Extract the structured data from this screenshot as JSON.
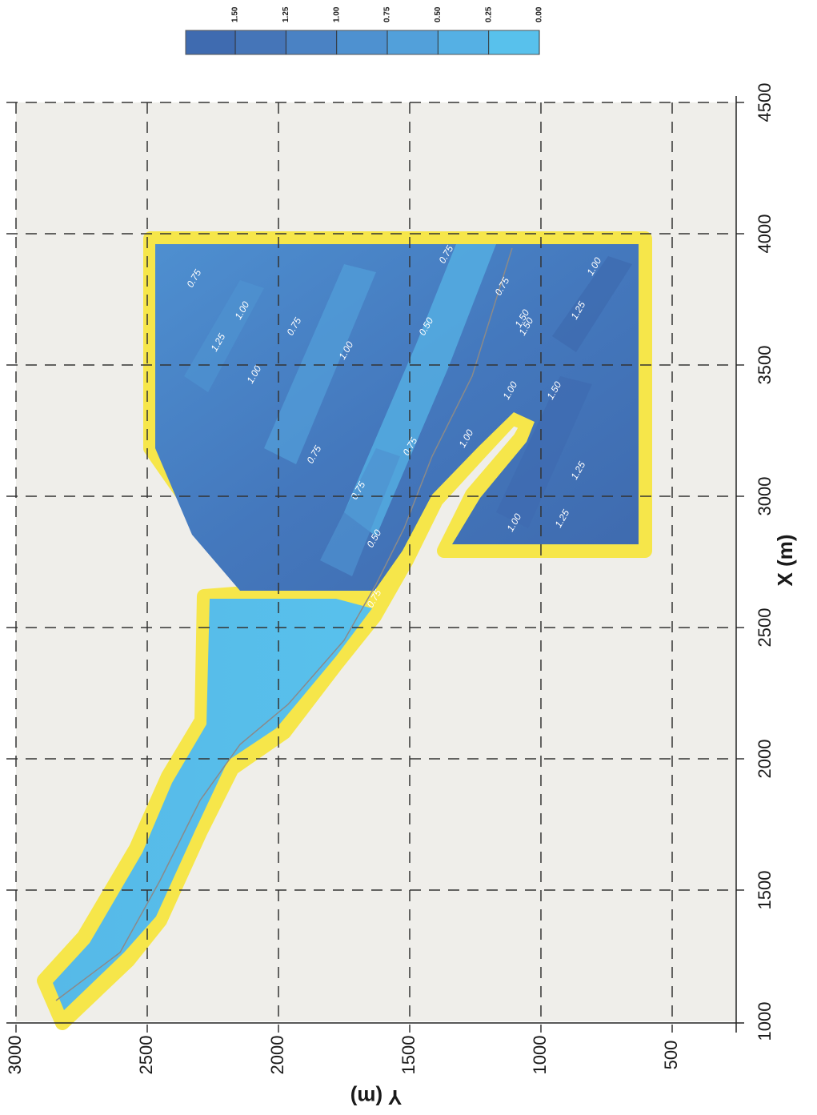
{
  "chart_data": {
    "type": "heatmap",
    "x_axis": {
      "label": "X (m)",
      "ticks": [
        "1000",
        "1500",
        "2000",
        "2500",
        "3000",
        "3500",
        "4000",
        "4500"
      ],
      "range": [
        1000,
        4500
      ]
    },
    "y_axis": {
      "label": "Y (m)",
      "ticks": [
        "500",
        "1000",
        "1500",
        "2000",
        "2500",
        "3000"
      ],
      "range": [
        200,
        3000
      ]
    },
    "grid": true,
    "colorbar": {
      "labels": [
        "1.50",
        "1.25",
        "1.00",
        "0.75",
        "0.50",
        "0.25",
        "0.00"
      ],
      "colors": [
        "#3f6bb0",
        "#4575b8",
        "#4a82c4",
        "#4e91d0",
        "#52a0da",
        "#55b0e4",
        "#58c1ec"
      ]
    },
    "contour_labels": [
      "0.75",
      "1.00",
      "1.25",
      "1.50",
      "0.50"
    ],
    "colors": {
      "background": "#efeeea",
      "boundary": "#f6e64a",
      "grid": "#333333",
      "channel_line": "#8a8a8a"
    }
  }
}
